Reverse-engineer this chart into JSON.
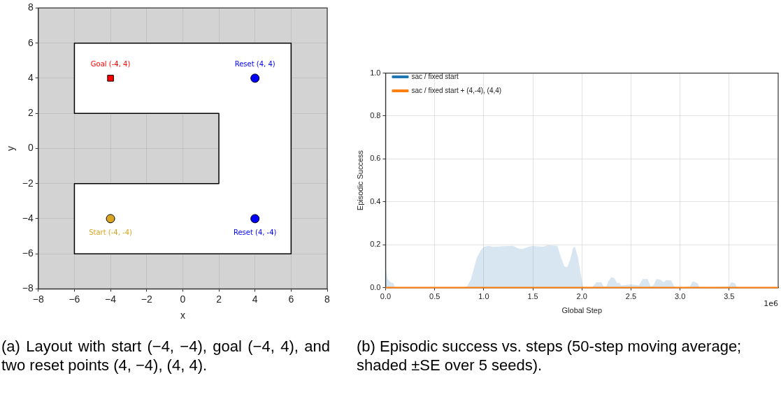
{
  "chart_data": [
    {
      "type": "scatter",
      "xlabel": "x",
      "ylabel": "y",
      "xlim": [
        -8,
        8
      ],
      "ylim": [
        -8,
        8
      ],
      "xticks": [
        {
          "value": -8,
          "label": "−8"
        },
        {
          "value": -6,
          "label": "−6"
        },
        {
          "value": -4,
          "label": "−4"
        },
        {
          "value": -2,
          "label": "−2"
        },
        0,
        2,
        4,
        6,
        8
      ],
      "yticks": [
        {
          "value": -8,
          "label": "−8"
        },
        {
          "value": -6,
          "label": "−6"
        },
        {
          "value": -4,
          "label": "−4"
        },
        {
          "value": -2,
          "label": "−2"
        },
        0,
        2,
        4,
        6,
        8
      ],
      "grid": true,
      "legend": false,
      "series": [
        {
          "type": "area",
          "color": "#000000",
          "x": [
            -6,
            6,
            6,
            -6,
            -6,
            2,
            2,
            -6,
            -6
          ],
          "values": [
            -6,
            -6,
            6,
            6,
            2,
            2,
            -2,
            -2,
            -6
          ],
          "marker": "none"
        },
        {
          "name": "Goal (-4, 4)",
          "color": "#ff0000",
          "x": [
            -4
          ],
          "values": [
            4
          ],
          "marker": "square"
        },
        {
          "name": "Reset (4, 4)",
          "color": "#0000ff",
          "x": [
            4
          ],
          "values": [
            4
          ],
          "marker": "circle"
        },
        {
          "name": "Start (-4, -4)",
          "color": "#daa520",
          "x": [
            -4
          ],
          "values": [
            -4
          ],
          "marker": "circle"
        },
        {
          "name": "Reset (4, -4)",
          "color": "#0000ff",
          "x": [
            4
          ],
          "values": [
            -4
          ],
          "marker": "circle"
        }
      ],
      "annotations": [
        "(a) Layout with start (−4, −4), goal (−4, 4), and two reset points (4, −4), (4, 4)."
      ]
    },
    {
      "type": "line",
      "xlabel": "Global Step",
      "ylabel": "Episodic Success",
      "xlim": [
        0,
        4
      ],
      "ylim": [
        0,
        1
      ],
      "xticks": [
        {
          "value": 0,
          "label": "0.0"
        },
        0.5,
        {
          "value": 1,
          "label": "1.0"
        },
        1.5,
        {
          "value": 2,
          "label": "2.0"
        },
        2.5,
        {
          "value": 3,
          "label": "3.0"
        },
        3.5
      ],
      "yticks": [
        {
          "value": 0,
          "label": "0.0"
        },
        {
          "value": 0.2,
          "label": "0.2"
        },
        {
          "value": 0.4,
          "label": "0.4"
        },
        {
          "value": 0.6,
          "label": "0.6"
        },
        {
          "value": 0.8,
          "label": "0.8"
        },
        {
          "value": 1,
          "label": "1.0"
        }
      ],
      "grid": true,
      "legend": "top left",
      "x": [
        0,
        0.02,
        0.05,
        0.08,
        0.09,
        0.1,
        0.8,
        0.83,
        0.87,
        0.9,
        0.93,
        0.97,
        1.0,
        1.05,
        1.1,
        1.2,
        1.3,
        1.35,
        1.4,
        1.45,
        1.5,
        1.6,
        1.65,
        1.75,
        1.78,
        1.82,
        1.85,
        1.88,
        1.91,
        1.93,
        1.96,
        1.99,
        2.01,
        2.03,
        2.1,
        2.15,
        2.2,
        2.22,
        2.25,
        2.27,
        2.3,
        2.33,
        2.36,
        2.38,
        2.4,
        2.5,
        2.58,
        2.62,
        2.67,
        2.7,
        2.73,
        2.76,
        2.8,
        2.83,
        2.86,
        2.91,
        2.94,
        3.0,
        3.1,
        3.13,
        3.18,
        3.2,
        3.5,
        3.52,
        3.56,
        3.58,
        4.0
      ],
      "series": [
        {
          "name": "sac / fixed start",
          "color": "#1f77b4",
          "values": [
            null,
            null,
            null,
            null,
            null,
            null,
            null,
            null,
            null,
            null,
            null,
            null,
            null,
            null,
            null,
            null,
            null,
            null,
            null,
            null,
            null,
            null,
            null,
            null,
            null,
            null,
            null,
            null,
            null,
            null,
            null,
            null,
            null,
            null,
            null,
            null,
            null,
            null,
            null,
            null,
            null,
            null,
            null,
            null,
            null,
            null,
            null,
            null,
            null,
            null,
            null,
            null,
            null,
            null,
            null,
            null,
            null,
            null,
            null,
            null,
            null,
            null,
            null,
            null,
            null,
            null,
            null
          ],
          "lower": [
            0,
            0,
            0,
            0,
            0,
            0,
            0,
            0,
            0,
            0,
            0,
            0,
            0,
            0,
            0,
            0,
            0,
            0,
            0,
            0,
            0,
            0,
            0,
            0,
            0,
            0,
            0,
            0,
            0,
            0,
            0,
            0,
            0,
            0,
            0,
            0,
            0,
            0,
            0,
            0,
            0,
            0,
            0,
            0,
            0,
            0,
            0,
            0,
            0,
            0,
            0,
            0,
            0,
            0,
            0,
            0,
            0,
            0,
            0,
            0,
            0,
            0,
            0,
            0,
            0,
            0,
            0
          ],
          "upper": [
            0.09,
            0.04,
            0.025,
            0.02,
            0.005,
            0,
            0,
            0.005,
            0.04,
            0.09,
            0.14,
            0.175,
            0.19,
            0.195,
            0.19,
            0.193,
            0.195,
            0.183,
            0.18,
            0.19,
            0.195,
            0.19,
            0.197,
            0.195,
            0.15,
            0.1,
            0.095,
            0.13,
            0.185,
            0.19,
            0.14,
            0.06,
            0.005,
            0,
            0,
            0.025,
            0.025,
            0.005,
            0.005,
            0.03,
            0.048,
            0.045,
            0.02,
            0.025,
            0.01,
            0.015,
            0.01,
            0.04,
            0.04,
            0.005,
            0.01,
            0.04,
            0.037,
            0.025,
            0.035,
            0.033,
            0.005,
            0,
            0.005,
            0.03,
            0.02,
            0,
            0.005,
            0.025,
            0.02,
            0,
            0
          ]
        },
        {
          "name": "sac / fixed start + (4,-4), (4,4)",
          "color": "#ff7f0e",
          "values": [
            0,
            0,
            0,
            0,
            0,
            0,
            0,
            0,
            0,
            0,
            0,
            0,
            0,
            0,
            0,
            0,
            0,
            0,
            0,
            0,
            0,
            0,
            0,
            0,
            0,
            0,
            0,
            0,
            0,
            0,
            0,
            0,
            0,
            0,
            0,
            0,
            0,
            0,
            0,
            0,
            0,
            0,
            0,
            0,
            0,
            0,
            0,
            0,
            0,
            0,
            0,
            0,
            0,
            0,
            0,
            0,
            0,
            0,
            0,
            0,
            0,
            0,
            0,
            0,
            0,
            0,
            0
          ]
        }
      ],
      "annotations": [
        "1e6",
        "(b) Episodic success vs. steps (50-step moving average; shaded ±SE over 5 seeds)."
      ]
    }
  ]
}
